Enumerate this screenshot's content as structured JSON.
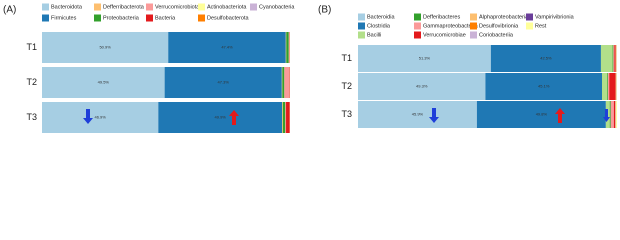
{
  "chart_data": [
    {
      "type": "bar",
      "orientation": "horizontal",
      "stacked": true,
      "title": "(A)",
      "categories": [
        "T1",
        "T2",
        "T3"
      ],
      "series": [
        {
          "name": "Bacteroidota",
          "color": "#a6cee3",
          "values": [
            50.9,
            49.5,
            46.9
          ],
          "value_labels": [
            "50.9%",
            "49.5%",
            "46.9%"
          ]
        },
        {
          "name": "Firmicutes",
          "color": "#1f78b4",
          "values": [
            47.4,
            47.3,
            49.9
          ],
          "value_labels": [
            "47.4%",
            "47.3%",
            "49.9%"
          ]
        },
        {
          "name": "Defferribacterota",
          "color": "#fdbf6f",
          "values": [
            0.2,
            0.2,
            0.3
          ]
        },
        {
          "name": "Proteobacteria",
          "color": "#33a02c",
          "values": [
            1.0,
            0.8,
            1.0
          ]
        },
        {
          "name": "Verrucomicrobiota",
          "color": "#fb9a99",
          "values": [
            0.3,
            2.0,
            0.3
          ]
        },
        {
          "name": "Bacteria",
          "color": "#e31a1c",
          "values": [
            0.1,
            0.2,
            1.5
          ]
        },
        {
          "name": "Actinobacteriota",
          "color": "#ffff99",
          "values": [
            0.05,
            0.05,
            0.05
          ]
        },
        {
          "name": "Desulfobacterota",
          "color": "#ff7f00",
          "values": [
            0.03,
            0.03,
            0.03
          ]
        },
        {
          "name": "Cyanobacteria",
          "color": "#cab2d6",
          "values": [
            0.02,
            0.02,
            0.02
          ]
        }
      ]
    },
    {
      "type": "bar",
      "orientation": "horizontal",
      "stacked": true,
      "title": "(B)",
      "categories": [
        "T1",
        "T2",
        "T3"
      ],
      "series": [
        {
          "name": "Bacteroidia",
          "color": "#a6cee3",
          "values": [
            51.3,
            49.3,
            45.9
          ],
          "value_labels": [
            "51.3%",
            "49.3%",
            "45.9%"
          ]
        },
        {
          "name": "Clostridia",
          "color": "#1f78b4",
          "values": [
            42.5,
            45.1,
            49.8
          ],
          "value_labels": [
            "42.5%",
            "45.1%",
            "49.8%"
          ]
        },
        {
          "name": "Bacilli",
          "color": "#b2df8a",
          "values": [
            4.5,
            2.0,
            1.5
          ]
        },
        {
          "name": "Defferibacteres",
          "color": "#33a02c",
          "values": [
            0.3,
            0.3,
            0.4
          ]
        },
        {
          "name": "Gammaproteobacteria",
          "color": "#fb9a99",
          "values": [
            0.4,
            0.5,
            1.2
          ]
        },
        {
          "name": "Verrucomicrobiae",
          "color": "#e31a1c",
          "values": [
            0.5,
            2.5,
            0.5
          ]
        },
        {
          "name": "Alphaproteobacteria",
          "color": "#fdbf6f",
          "values": [
            0.1,
            0.1,
            0.1
          ]
        },
        {
          "name": "Desulfovibrionia",
          "color": "#ff7f00",
          "values": [
            0.1,
            0.1,
            0.1
          ]
        },
        {
          "name": "Coriobacteriia",
          "color": "#cab2d6",
          "values": [
            0.1,
            0.1,
            0.1
          ]
        },
        {
          "name": "Vampirivibrionia",
          "color": "#6a3d9a",
          "values": [
            0.05,
            0.05,
            0.05
          ]
        },
        {
          "name": "Rest",
          "color": "#ffff99",
          "values": [
            0.15,
            0.15,
            0.35
          ]
        }
      ]
    }
  ]
}
